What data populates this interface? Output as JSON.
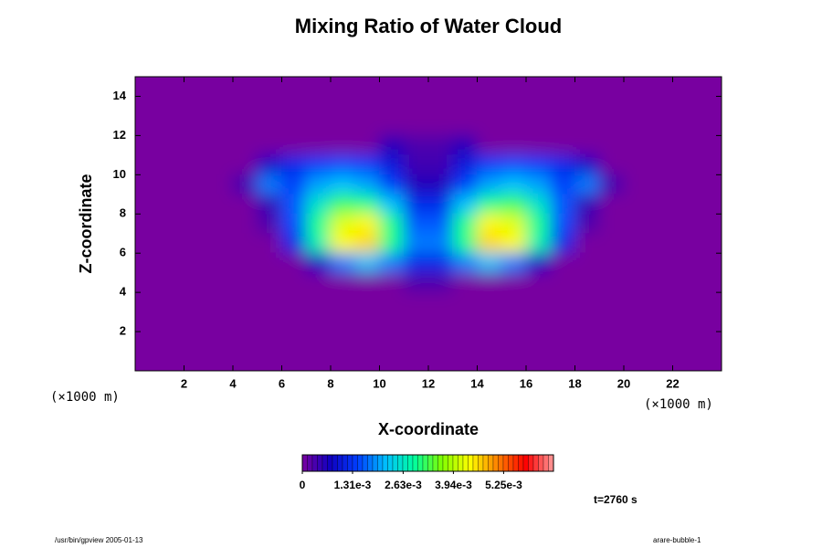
{
  "chart_data": {
    "type": "contour",
    "title": "Mixing Ratio of Water Cloud",
    "x_label": "X-coordinate",
    "y_label": "Z-coordinate",
    "x_unit_label": "(×1000 m)",
    "y_unit_label": "(×1000 m)",
    "annotation": "t=2760 s",
    "footer_left": "/usr/bin/gpview 2005-01-13",
    "footer_right": "arare-bubble-1",
    "xlim": [
      0,
      24
    ],
    "xticks": [
      2,
      4,
      6,
      8,
      10,
      12,
      14,
      16,
      18,
      20,
      22
    ],
    "ylim": [
      0,
      15
    ],
    "yticks": [
      2,
      4,
      6,
      8,
      10,
      12,
      14
    ],
    "x": [
      0.5,
      1.5,
      2.5,
      3.5,
      4.5,
      5.5,
      6.5,
      7.5,
      8.5,
      9.5,
      10.5,
      11.5,
      12.5,
      13.5,
      14.5,
      15.5,
      16.5,
      17.5,
      18.5,
      19.5,
      20.5,
      21.5,
      22.5,
      23.5
    ],
    "y": [
      14.5,
      13.5,
      12.5,
      11.5,
      10.5,
      9.5,
      8.5,
      7.5,
      6.5,
      5.5,
      4.5,
      3.5,
      2.5,
      1.5,
      0.5
    ],
    "z": [
      [
        0,
        0,
        0,
        0,
        0,
        0,
        0,
        0,
        0,
        0,
        0,
        0,
        0,
        0,
        0,
        0,
        0,
        0,
        0,
        0,
        0,
        0,
        0,
        0
      ],
      [
        0,
        0,
        0,
        0,
        0,
        0,
        0,
        0,
        0,
        0,
        0,
        0,
        0,
        0,
        0,
        0,
        0,
        0,
        0,
        0,
        0,
        0,
        0,
        0
      ],
      [
        0,
        0,
        0,
        0,
        0,
        0,
        0,
        0,
        0,
        0,
        0,
        0,
        0,
        0,
        0,
        0,
        0,
        0,
        0,
        0,
        0,
        0,
        0,
        0
      ],
      [
        0,
        0,
        0,
        0,
        0,
        0,
        0,
        0,
        0,
        0,
        0.0006,
        0.0003,
        0.0003,
        0.0006,
        0,
        0,
        0,
        0,
        0,
        0,
        0,
        0,
        0,
        0
      ],
      [
        0,
        0,
        0,
        0,
        0,
        0.0008,
        0.0012,
        0.0014,
        0.0015,
        0.0014,
        0.001,
        0.0004,
        0.0004,
        0.001,
        0.0014,
        0.0015,
        0.0014,
        0.0012,
        0.0008,
        0,
        0,
        0,
        0,
        0
      ],
      [
        0,
        0,
        0,
        0,
        0.0004,
        0.0018,
        0.0014,
        0.002,
        0.0022,
        0.002,
        0.0014,
        0.0006,
        0.0006,
        0.0014,
        0.002,
        0.0022,
        0.002,
        0.0014,
        0.0018,
        0.0004,
        0,
        0,
        0,
        0
      ],
      [
        0,
        0,
        0,
        0,
        0,
        0.0005,
        0.0016,
        0.0026,
        0.0032,
        0.003,
        0.0022,
        0.0012,
        0.0012,
        0.0022,
        0.003,
        0.0032,
        0.0026,
        0.0016,
        0.0005,
        0,
        0,
        0,
        0,
        0
      ],
      [
        0,
        0,
        0,
        0,
        0,
        0.0003,
        0.0015,
        0.003,
        0.0042,
        0.0044,
        0.003,
        0.0016,
        0.0016,
        0.003,
        0.0044,
        0.0042,
        0.003,
        0.0015,
        0.0003,
        0,
        0,
        0,
        0,
        0
      ],
      [
        0,
        0,
        0,
        0,
        0,
        0,
        0.0012,
        0.0028,
        0.0044,
        0.0046,
        0.003,
        0.0018,
        0.0018,
        0.003,
        0.0046,
        0.0044,
        0.0028,
        0.0012,
        0,
        0,
        0,
        0,
        0,
        0
      ],
      [
        0,
        0,
        0,
        0,
        0,
        0,
        0,
        0.0008,
        0.0018,
        0.0022,
        0.0018,
        0.0012,
        0.0012,
        0.0018,
        0.0022,
        0.0018,
        0.0008,
        0,
        0,
        0,
        0,
        0,
        0,
        0
      ],
      [
        0,
        0,
        0,
        0,
        0,
        0,
        0,
        0,
        0,
        0,
        0,
        0.0003,
        0.0003,
        0,
        0,
        0,
        0,
        0,
        0,
        0,
        0,
        0,
        0,
        0
      ],
      [
        0,
        0,
        0,
        0,
        0,
        0,
        0,
        0,
        0,
        0,
        0,
        0,
        0,
        0,
        0,
        0,
        0,
        0,
        0,
        0,
        0,
        0,
        0,
        0
      ],
      [
        0,
        0,
        0,
        0,
        0,
        0,
        0,
        0,
        0,
        0,
        0,
        0,
        0,
        0,
        0,
        0,
        0,
        0,
        0,
        0,
        0,
        0,
        0,
        0
      ],
      [
        0,
        0,
        0,
        0,
        0,
        0,
        0,
        0,
        0,
        0,
        0,
        0,
        0,
        0,
        0,
        0,
        0,
        0,
        0,
        0,
        0,
        0,
        0,
        0
      ],
      [
        0,
        0,
        0,
        0,
        0,
        0,
        0,
        0,
        0,
        0,
        0,
        0,
        0,
        0,
        0,
        0,
        0,
        0,
        0,
        0,
        0,
        0,
        0,
        0
      ]
    ],
    "colorbar_lim": [
      0,
      0.00655
    ],
    "colorbar_ticks": [
      0,
      {
        "value": 0.00131,
        "label": "1.31e-3"
      },
      {
        "value": 0.00263,
        "label": "2.63e-3"
      },
      {
        "value": 0.00394,
        "label": "3.94e-3"
      },
      {
        "value": 0.00525,
        "label": "5.25e-3"
      }
    ],
    "colors": [
      "#7800a0",
      "#1000c0",
      "#0040ff",
      "#00c0ff",
      "#00ffa0",
      "#80ff00",
      "#ffff00",
      "#ff8000",
      "#ff0000",
      "#ff9a9a"
    ]
  }
}
